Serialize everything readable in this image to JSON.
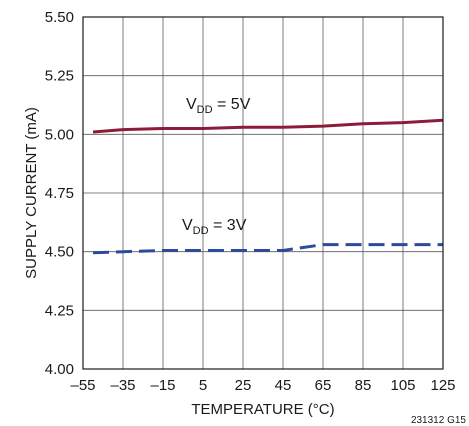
{
  "chart_data": {
    "type": "line",
    "title": "",
    "xlabel": "TEMPERATURE (°C)",
    "ylabel": "SUPPLY CURRENT (mA)",
    "xlim": [
      -55,
      125
    ],
    "ylim": [
      4.0,
      5.5
    ],
    "x_ticks": [
      -55,
      -35,
      -15,
      5,
      25,
      45,
      65,
      85,
      105,
      125
    ],
    "x_tick_labels": [
      "–55",
      "–35",
      "–15",
      "5",
      "25",
      "45",
      "65",
      "85",
      "105",
      "125"
    ],
    "y_ticks": [
      4.0,
      4.25,
      4.5,
      4.75,
      5.0,
      5.25,
      5.5
    ],
    "y_tick_labels": [
      "4.00",
      "4.25",
      "4.50",
      "4.75",
      "5.00",
      "5.25",
      "5.50"
    ],
    "grid": true,
    "series": [
      {
        "name_main": "V",
        "name_sub": "DD",
        "name_rest": " = 5V",
        "color": "#8b1c3a",
        "style": "solid",
        "x": [
          -50,
          -35,
          -15,
          5,
          25,
          45,
          65,
          85,
          105,
          125
        ],
        "y": [
          5.01,
          5.02,
          5.025,
          5.025,
          5.03,
          5.03,
          5.035,
          5.045,
          5.05,
          5.06
        ]
      },
      {
        "name_main": "V",
        "name_sub": "DD",
        "name_rest": " = 3V",
        "color": "#2e4a9e",
        "style": "dashed",
        "x": [
          -50,
          -35,
          -15,
          5,
          25,
          45,
          65,
          85,
          105,
          125
        ],
        "y": [
          4.495,
          4.5,
          4.505,
          4.505,
          4.505,
          4.505,
          4.53,
          4.53,
          4.53,
          4.53
        ]
      }
    ],
    "figure_id": "231312 G15"
  }
}
